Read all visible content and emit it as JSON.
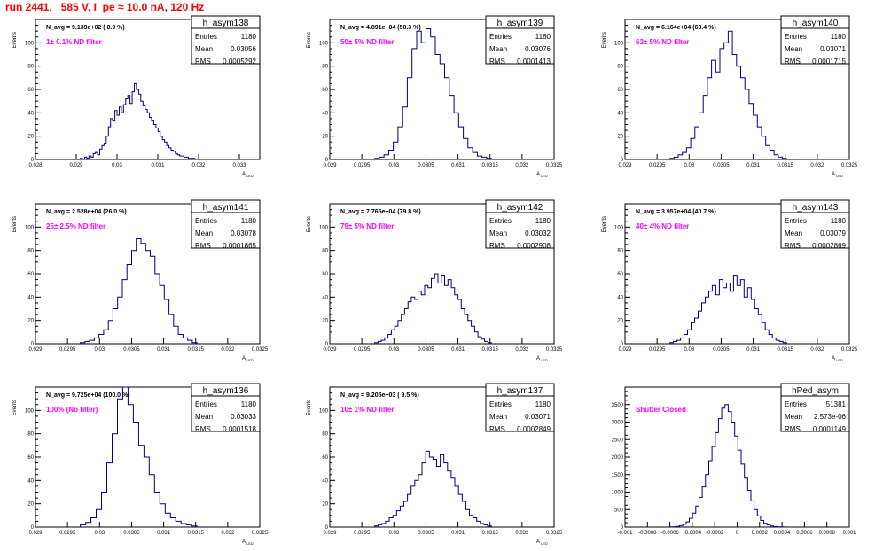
{
  "page": {
    "title": "run 2441,   585 V, I_pe ≈ 10.0 nA, 120 Hz"
  },
  "colors": {
    "histogram_line": "#000080",
    "filter_label": "#ff00ff",
    "title": "#ff0000",
    "frame": "#000000"
  },
  "stats_labels": {
    "entries": "Entries",
    "mean": "Mean",
    "rms": "RMS"
  },
  "chart_data": [
    {
      "type": "histogram",
      "name": "h_asym138",
      "nevt": "N_avg = 9.139e+02 ( 0.9 %)",
      "filter": "1± 0.1% ND filter",
      "stats": {
        "entries": "1180",
        "mean": "0.03056",
        "rms": "0.0005292"
      },
      "xlabel": "A_LED",
      "ylabel": "Events",
      "xlim": [
        0.028,
        0.0335
      ],
      "ylim": [
        0,
        120
      ],
      "xticks": [
        0.028,
        0.029,
        0.03,
        0.031,
        0.032,
        0.033
      ],
      "xtick_labels": [
        "0.028",
        "0.029",
        "0.03",
        "0.031",
        "0.032",
        "0.033"
      ],
      "yticks": [
        0,
        20,
        40,
        60,
        80,
        100
      ],
      "yvalues": [
        1,
        0,
        2,
        1,
        3,
        2,
        5,
        6,
        4,
        9,
        12,
        14,
        20,
        28,
        35,
        33,
        42,
        38,
        45,
        40,
        47,
        52,
        55,
        48,
        58,
        65,
        60,
        56,
        50,
        46,
        43,
        40,
        36,
        33,
        30,
        27,
        24,
        20,
        17,
        15,
        12,
        10,
        8,
        7,
        5,
        4,
        3,
        3,
        2,
        2,
        1,
        1,
        1,
        0
      ]
    },
    {
      "type": "histogram",
      "name": "h_asym139",
      "nevt": "N_avg = 4.891e+04 (50.3 %)",
      "filter": "50± 5% ND filter",
      "stats": {
        "entries": "1180",
        "mean": "0.03076",
        "rms": "0.0001413"
      },
      "xlabel": "A_LED",
      "ylabel": "Events",
      "xlim": [
        0.029,
        0.0325
      ],
      "ylim": [
        0,
        120
      ],
      "xticks": [
        0.029,
        0.0295,
        0.03,
        0.0305,
        0.031,
        0.0315,
        0.032,
        0.0325
      ],
      "xtick_labels": [
        "0.029",
        "0.0295",
        "0.03",
        "0.0305",
        "0.031",
        "0.0315",
        "0.032",
        "0.0325"
      ],
      "yticks": [
        0,
        20,
        40,
        60,
        80,
        100
      ],
      "yvalues": [
        1,
        2,
        4,
        8,
        15,
        28,
        45,
        70,
        95,
        110,
        100,
        112,
        105,
        90,
        82,
        70,
        55,
        40,
        28,
        18,
        10,
        6,
        3,
        2,
        1
      ]
    },
    {
      "type": "histogram",
      "name": "h_asym140",
      "nevt": "N_avg = 6.164e+04 (63.4 %)",
      "filter": "63± 5% ND filter",
      "stats": {
        "entries": "1180",
        "mean": "0.03071",
        "rms": "0.0001715"
      },
      "xlabel": "A_LED",
      "ylabel": "Events",
      "xlim": [
        0.029,
        0.0325
      ],
      "ylim": [
        0,
        120
      ],
      "xticks": [
        0.029,
        0.0295,
        0.03,
        0.0305,
        0.031,
        0.0315,
        0.032,
        0.0325
      ],
      "xtick_labels": [
        "0.029",
        "0.0295",
        "0.03",
        "0.0305",
        "0.031",
        "0.0315",
        "0.032",
        "0.0325"
      ],
      "yticks": [
        0,
        20,
        40,
        60,
        80,
        100
      ],
      "yvalues": [
        1,
        2,
        4,
        6,
        10,
        18,
        28,
        40,
        55,
        70,
        85,
        75,
        95,
        100,
        110,
        90,
        80,
        70,
        60,
        48,
        38,
        28,
        20,
        12,
        8,
        4,
        2,
        1
      ]
    },
    {
      "type": "histogram",
      "name": "h_asym141",
      "nevt": "N_avg = 2.528e+04 (26.0 %)",
      "filter": "25± 2.5% ND filter",
      "stats": {
        "entries": "1180",
        "mean": "0.03078",
        "rms": "0.0001865"
      },
      "xlabel": "A_LED",
      "ylabel": "Events",
      "xlim": [
        0.029,
        0.0325
      ],
      "ylim": [
        0,
        120
      ],
      "xticks": [
        0.029,
        0.0295,
        0.03,
        0.0305,
        0.031,
        0.0315,
        0.032,
        0.0325
      ],
      "xtick_labels": [
        "0.029",
        "0.0295",
        "0.03",
        "0.0305",
        "0.031",
        "0.0315",
        "0.032",
        "0.0325"
      ],
      "yticks": [
        0,
        20,
        40,
        60,
        80,
        100
      ],
      "yvalues": [
        1,
        2,
        3,
        5,
        8,
        12,
        20,
        30,
        40,
        55,
        68,
        80,
        90,
        86,
        80,
        75,
        60,
        50,
        38,
        25,
        15,
        8,
        5,
        3,
        1
      ]
    },
    {
      "type": "histogram",
      "name": "h_asym142",
      "nevt": "N_avg = 7.765e+04 (79.8 %)",
      "filter": "79± 5% ND filter",
      "stats": {
        "entries": "1180",
        "mean": "0.03032",
        "rms": "0.0002908"
      },
      "xlabel": "A_LED",
      "ylabel": "Events",
      "xlim": [
        0.029,
        0.0325
      ],
      "ylim": [
        0,
        120
      ],
      "xticks": [
        0.029,
        0.0295,
        0.03,
        0.0305,
        0.031,
        0.0315,
        0.032,
        0.0325
      ],
      "xtick_labels": [
        "0.029",
        "0.0295",
        "0.03",
        "0.0305",
        "0.031",
        "0.0315",
        "0.032",
        "0.0325"
      ],
      "yticks": [
        0,
        20,
        40,
        60,
        80,
        100
      ],
      "yvalues": [
        1,
        2,
        3,
        5,
        8,
        12,
        15,
        20,
        25,
        30,
        36,
        40,
        38,
        45,
        42,
        50,
        48,
        56,
        60,
        52,
        58,
        50,
        55,
        48,
        42,
        38,
        30,
        25,
        20,
        15,
        10,
        6,
        4,
        2,
        1
      ]
    },
    {
      "type": "histogram",
      "name": "h_asym143",
      "nevt": "N_avg = 3.957e+04 (40.7 %)",
      "filter": "40± 4% ND filter",
      "stats": {
        "entries": "1180",
        "mean": "0.03079",
        "rms": "0.0002869"
      },
      "xlabel": "A_LED",
      "ylabel": "Events",
      "xlim": [
        0.029,
        0.0325
      ],
      "ylim": [
        0,
        120
      ],
      "xticks": [
        0.029,
        0.0295,
        0.03,
        0.0305,
        0.031,
        0.0315,
        0.032,
        0.0325
      ],
      "xtick_labels": [
        "0.029",
        "0.0295",
        "0.03",
        "0.0305",
        "0.031",
        "0.0315",
        "0.032",
        "0.0325"
      ],
      "yticks": [
        0,
        20,
        40,
        60,
        80,
        100
      ],
      "yvalues": [
        1,
        2,
        3,
        5,
        8,
        12,
        18,
        22,
        28,
        35,
        40,
        45,
        50,
        42,
        55,
        48,
        52,
        45,
        58,
        50,
        55,
        40,
        48,
        38,
        30,
        25,
        18,
        12,
        8,
        5,
        3,
        2,
        1
      ]
    },
    {
      "type": "histogram",
      "name": "h_asym136",
      "nevt": "N_avg = 9.725e+04 (100.0 %)",
      "filter": "100% (No filter)",
      "stats": {
        "entries": "1180",
        "mean": "0.03033",
        "rms": "0.0001518"
      },
      "xlabel": "A_LED",
      "ylabel": "Events",
      "xlim": [
        0.029,
        0.0325
      ],
      "ylim": [
        0,
        120
      ],
      "xticks": [
        0.029,
        0.0295,
        0.03,
        0.0305,
        0.031,
        0.0315,
        0.032,
        0.0325
      ],
      "xtick_labels": [
        "0.029",
        "0.0295",
        "0.03",
        "0.0305",
        "0.031",
        "0.0315",
        "0.032",
        "0.0325"
      ],
      "yticks": [
        0,
        20,
        40,
        60,
        80,
        100
      ],
      "yvalues": [
        2,
        4,
        8,
        15,
        30,
        55,
        80,
        110,
        125,
        105,
        90,
        70,
        60,
        45,
        30,
        20,
        12,
        8,
        5,
        3,
        2,
        1
      ]
    },
    {
      "type": "histogram",
      "name": "h_asym137",
      "nevt": "N_avg = 9.205e+03 ( 9.5 %)",
      "filter": "10± 1% ND filter",
      "stats": {
        "entries": "1180",
        "mean": "0.03071",
        "rms": "0.0002849"
      },
      "xlabel": "A_LED",
      "ylabel": "Events",
      "xlim": [
        0.029,
        0.0325
      ],
      "ylim": [
        0,
        120
      ],
      "xticks": [
        0.029,
        0.0295,
        0.03,
        0.0305,
        0.031,
        0.0315,
        0.032,
        0.0325
      ],
      "xtick_labels": [
        "0.029",
        "0.0295",
        "0.03",
        "0.0305",
        "0.031",
        "0.0315",
        "0.032",
        "0.0325"
      ],
      "yticks": [
        0,
        20,
        40,
        60,
        80,
        100
      ],
      "yvalues": [
        1,
        2,
        3,
        5,
        8,
        10,
        14,
        18,
        22,
        28,
        35,
        40,
        45,
        55,
        65,
        60,
        58,
        52,
        62,
        55,
        48,
        42,
        35,
        28,
        22,
        15,
        10,
        8,
        5,
        3,
        2,
        1
      ]
    },
    {
      "type": "histogram",
      "name": "hPed_asym",
      "nevt": "",
      "filter": "Shutter Closed",
      "stats": {
        "entries": "51381",
        "mean": "2.573e-06",
        "rms": "0.0001149"
      },
      "xlabel": "",
      "ylabel": "",
      "xlim": [
        -0.001,
        0.001
      ],
      "ylim": [
        0,
        4000
      ],
      "xticks": [
        -0.001,
        -0.0008,
        -0.0006,
        -0.0004,
        -0.0002,
        0,
        0.0002,
        0.0004,
        0.0006,
        0.0008,
        0.001
      ],
      "xtick_labels": [
        "-0.001",
        "-0.0008",
        "-0.0006",
        "-0.0004",
        "-0.0002",
        "0",
        "0.0002",
        "0.0004",
        "0.0006",
        "0.0008",
        "0.001"
      ],
      "yticks": [
        0,
        500,
        1000,
        1500,
        2000,
        2500,
        3000,
        3500
      ],
      "yvalues": [
        5,
        10,
        20,
        40,
        80,
        150,
        250,
        400,
        600,
        850,
        1150,
        1500,
        1900,
        2300,
        2700,
        3100,
        3400,
        3500,
        3300,
        3000,
        2600,
        2200,
        1800,
        1400,
        1050,
        750,
        500,
        320,
        190,
        110,
        60,
        30,
        15,
        8,
        4,
        2
      ]
    }
  ]
}
